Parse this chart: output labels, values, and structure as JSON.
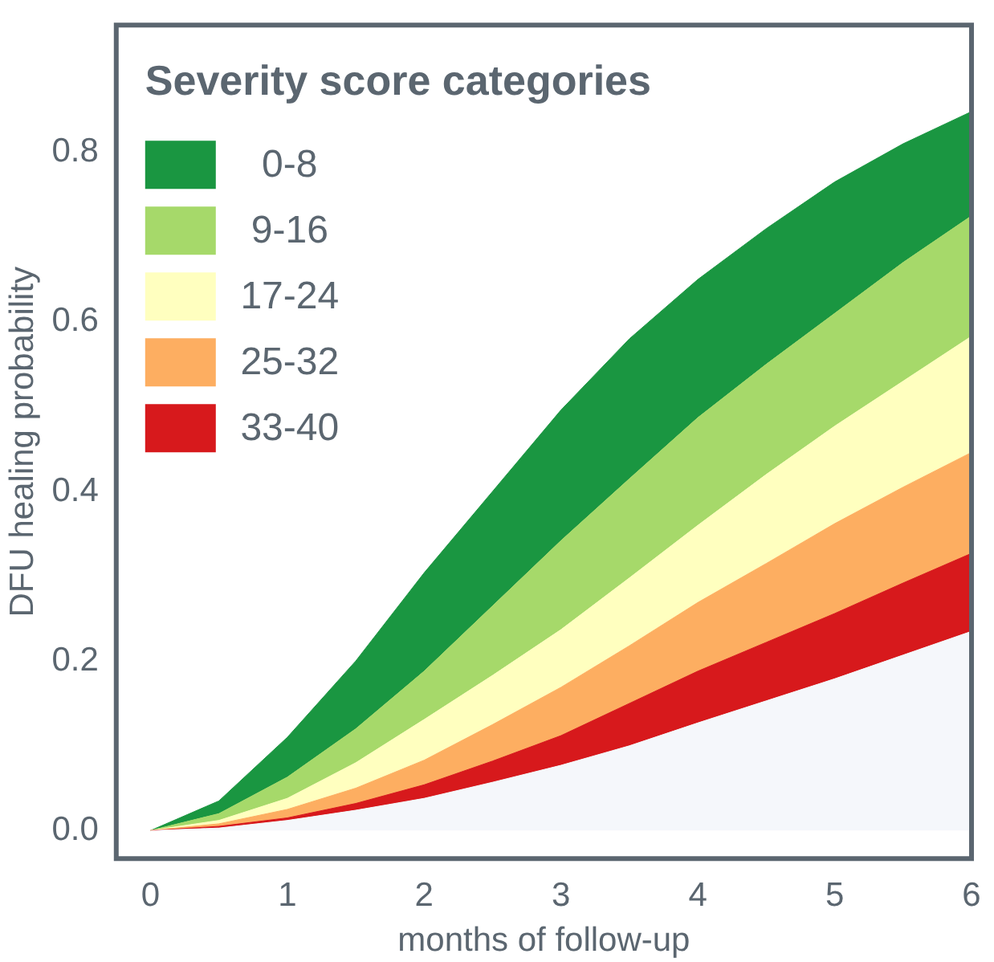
{
  "chart_data": {
    "type": "area",
    "xlabel": "months of follow-up",
    "ylabel": "DFU healing probability",
    "legend_title": "Severity score categories",
    "legend": "top left",
    "grid": false,
    "x": [
      0,
      0.5,
      1,
      1.5,
      2,
      2.5,
      3,
      3.5,
      4,
      4.5,
      5,
      5.5,
      6
    ],
    "xlim": [
      -0.25,
      6
    ],
    "xticks": [
      0,
      1,
      2,
      3,
      4,
      5,
      6
    ],
    "ylim": [
      -0.033,
      0.95
    ],
    "yticks": [
      {
        "value": 0,
        "label": "0.0"
      },
      {
        "value": 0.2,
        "label": "0.2"
      },
      {
        "value": 0.4,
        "label": "0.4"
      },
      {
        "value": 0.6,
        "label": "0.6"
      },
      {
        "value": 0.8,
        "label": "0.8"
      }
    ],
    "series": [
      {
        "color": "#f5f7fb",
        "values": [
          0,
          0.003,
          0.012,
          0.024,
          0.038,
          0.057,
          0.077,
          0.1,
          0.127,
          0.153,
          0.179,
          0.207,
          0.235
        ]
      },
      {
        "name": "33-40",
        "color": "#d7191c",
        "values": [
          0,
          0.005,
          0.015,
          0.032,
          0.054,
          0.082,
          0.112,
          0.15,
          0.188,
          0.222,
          0.256,
          0.292,
          0.327
        ]
      },
      {
        "name": "25-32",
        "color": "#fdae61",
        "values": [
          0,
          0.008,
          0.025,
          0.05,
          0.083,
          0.125,
          0.169,
          0.218,
          0.269,
          0.315,
          0.362,
          0.405,
          0.446
        ]
      },
      {
        "name": "17-24",
        "color": "#ffffbf",
        "values": [
          0,
          0.012,
          0.038,
          0.08,
          0.131,
          0.183,
          0.237,
          0.298,
          0.36,
          0.42,
          0.477,
          0.53,
          0.583
        ]
      },
      {
        "name": "9-16",
        "color": "#a6d96a",
        "values": [
          0,
          0.02,
          0.063,
          0.12,
          0.188,
          0.265,
          0.342,
          0.415,
          0.487,
          0.55,
          0.61,
          0.67,
          0.725
        ]
      },
      {
        "name": "0-8",
        "color": "#1a9641",
        "values": [
          0,
          0.035,
          0.11,
          0.2,
          0.304,
          0.4,
          0.496,
          0.58,
          0.65,
          0.71,
          0.765,
          0.81,
          0.848
        ]
      }
    ]
  }
}
